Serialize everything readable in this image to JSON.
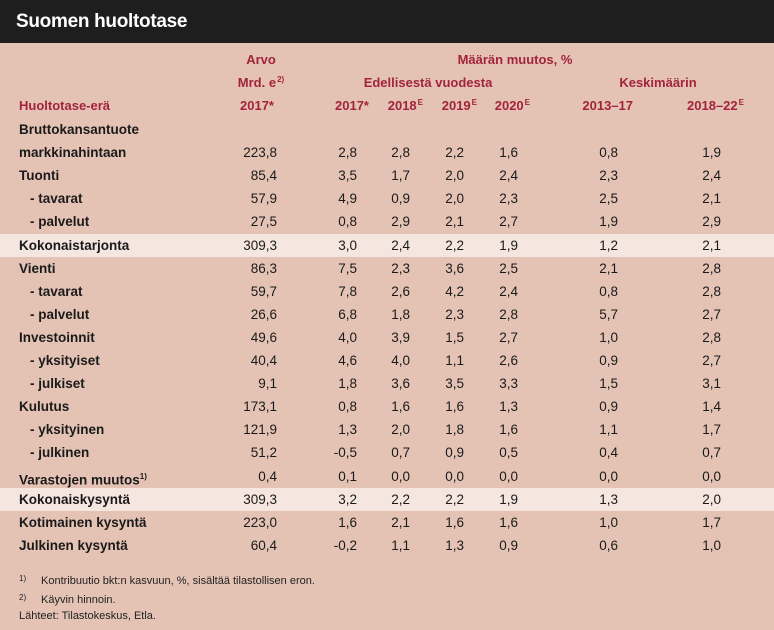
{
  "title": "Suomen huoltotase",
  "header": {
    "arvo": "Arvo",
    "unit": "Mrd. e",
    "unit_sup": "2)",
    "muutos": "Määrän muutos, %",
    "edellisesta": "Edellisestä vuodesta",
    "keskimaarin": "Keskimäärin",
    "col_label": "Huoltotase-erä",
    "col_value_year": "2017*",
    "years": [
      {
        "text": "2017*",
        "sup": ""
      },
      {
        "text": "2018",
        "sup": "E"
      },
      {
        "text": "2019",
        "sup": "E"
      },
      {
        "text": "2020",
        "sup": "E"
      }
    ],
    "avg_cols": [
      {
        "text": "2013–17",
        "sup": ""
      },
      {
        "text": "2018–22",
        "sup": "E"
      }
    ]
  },
  "rows": [
    {
      "label": "Bruttokansantuote",
      "values": [
        "",
        "",
        "",
        "",
        "",
        "",
        ""
      ]
    },
    {
      "label": "markkinahintaan",
      "values": [
        "223,8",
        "2,8",
        "2,8",
        "2,2",
        "1,6",
        "0,8",
        "1,9"
      ]
    },
    {
      "label": "Tuonti",
      "values": [
        "85,4",
        "3,5",
        "1,7",
        "2,0",
        "2,4",
        "2,3",
        "2,4"
      ]
    },
    {
      "label": "- tavarat",
      "sub": true,
      "values": [
        "57,9",
        "4,9",
        "0,9",
        "2,0",
        "2,3",
        "2,5",
        "2,1"
      ]
    },
    {
      "label": "- palvelut",
      "sub": true,
      "values": [
        "27,5",
        "0,8",
        "2,9",
        "2,1",
        "2,7",
        "1,9",
        "2,9"
      ]
    },
    {
      "label": "Kokonaistarjonta",
      "highlight": true,
      "values": [
        "309,3",
        "3,0",
        "2,4",
        "2,2",
        "1,9",
        "1,2",
        "2,1"
      ]
    },
    {
      "label": "Vienti",
      "values": [
        "86,3",
        "7,5",
        "2,3",
        "3,6",
        "2,5",
        "2,1",
        "2,8"
      ]
    },
    {
      "label": "- tavarat",
      "sub": true,
      "values": [
        "59,7",
        "7,8",
        "2,6",
        "4,2",
        "2,4",
        "0,8",
        "2,8"
      ]
    },
    {
      "label": "- palvelut",
      "sub": true,
      "values": [
        "26,6",
        "6,8",
        "1,8",
        "2,3",
        "2,8",
        "5,7",
        "2,7"
      ]
    },
    {
      "label": "Investoinnit",
      "values": [
        "49,6",
        "4,0",
        "3,9",
        "1,5",
        "2,7",
        "1,0",
        "2,8"
      ]
    },
    {
      "label": "- yksityiset",
      "sub": true,
      "values": [
        "40,4",
        "4,6",
        "4,0",
        "1,1",
        "2,6",
        "0,9",
        "2,7"
      ]
    },
    {
      "label": "- julkiset",
      "sub": true,
      "values": [
        "9,1",
        "1,8",
        "3,6",
        "3,5",
        "3,3",
        "1,5",
        "3,1"
      ]
    },
    {
      "label": "Kulutus",
      "values": [
        "173,1",
        "0,8",
        "1,6",
        "1,6",
        "1,3",
        "0,9",
        "1,4"
      ]
    },
    {
      "label": "- yksityinen",
      "sub": true,
      "values": [
        "121,9",
        "1,3",
        "2,0",
        "1,8",
        "1,6",
        "1,1",
        "1,7"
      ]
    },
    {
      "label": "- julkinen",
      "sub": true,
      "values": [
        "51,2",
        "-0,5",
        "0,7",
        "0,9",
        "0,5",
        "0,4",
        "0,7"
      ]
    },
    {
      "label": "Varastojen muutos",
      "label_sup": "1)",
      "values": [
        "0,4",
        "0,1",
        "0,0",
        "0,0",
        "0,0",
        "0,0",
        "0,0"
      ]
    },
    {
      "label": "Kokonaiskysyntä",
      "highlight": true,
      "values": [
        "309,3",
        "3,2",
        "2,2",
        "2,2",
        "1,9",
        "1,3",
        "2,0"
      ]
    },
    {
      "label": "Kotimainen kysyntä",
      "values": [
        "223,0",
        "1,6",
        "2,1",
        "1,6",
        "1,6",
        "1,0",
        "1,7"
      ]
    },
    {
      "label": "Julkinen kysyntä",
      "values": [
        "60,4",
        "-0,2",
        "1,1",
        "1,3",
        "0,9",
        "0,6",
        "1,0"
      ]
    }
  ],
  "footnotes": [
    {
      "mark": "1)",
      "text": "Kontribuutio bkt:n kasvuun, %, sisältää tilastollisen eron."
    },
    {
      "mark": "2)",
      "text": "Käyvin hinnoin."
    },
    {
      "mark": "",
      "text": "Lähteet: Tilastokeskus, Etla."
    }
  ]
}
